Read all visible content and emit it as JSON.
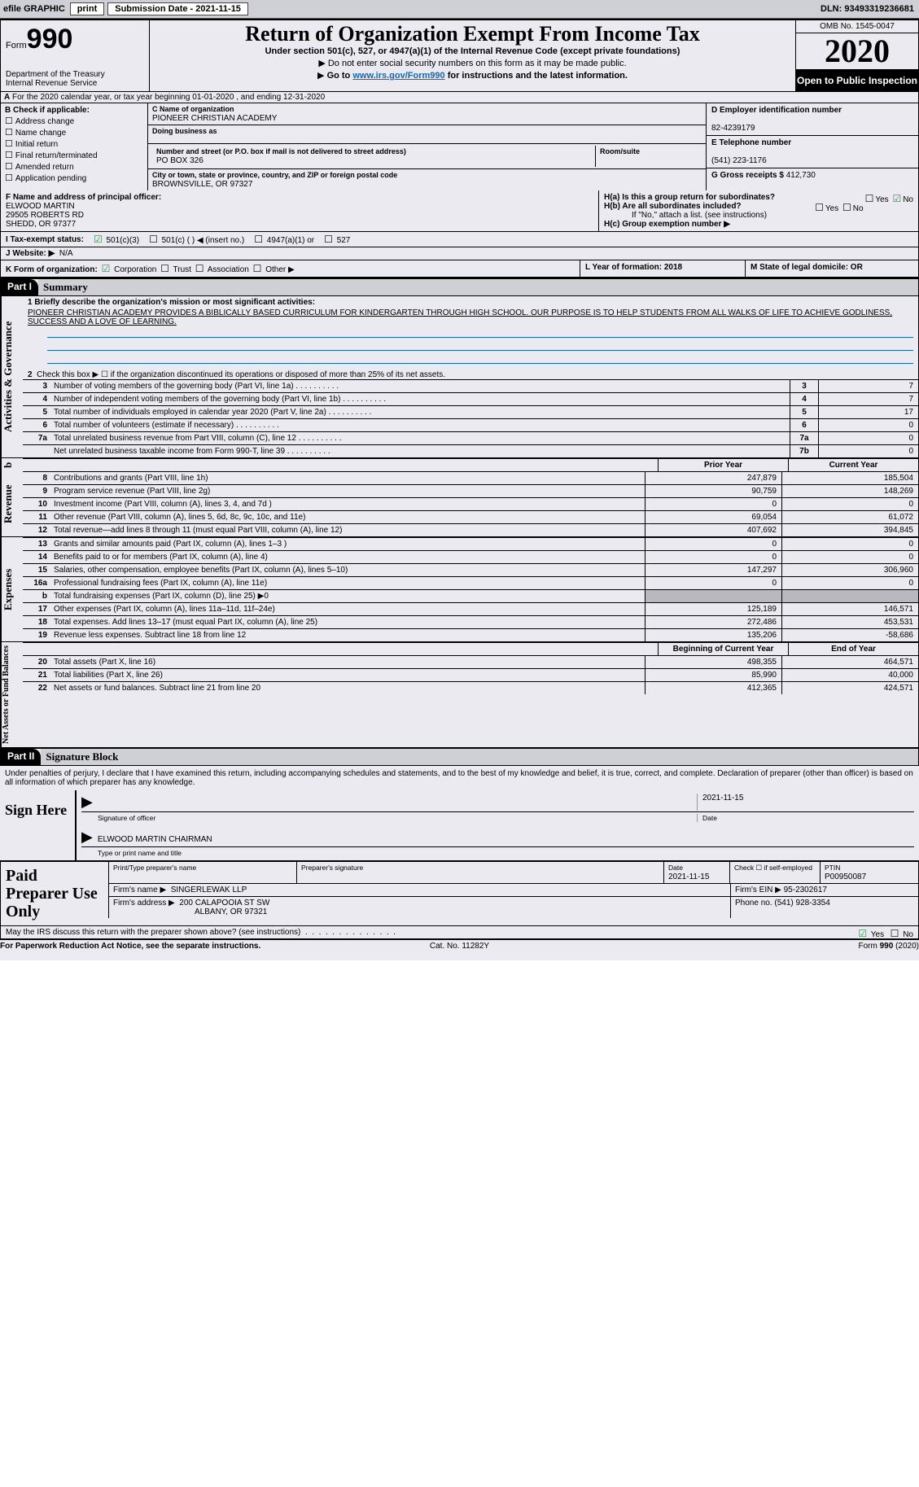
{
  "colors": {
    "bg": "#eaeaf0",
    "bar": "#cfcfd6",
    "link": "#1068c5",
    "check": "#1a9e3e",
    "shade": "#b8b8c0"
  },
  "topbar": {
    "efile_label": "efile GRAPHIC",
    "print_label": "print",
    "submission_label": "Submission Date - 2021-11-15",
    "dln_label": "DLN: 93493319236681"
  },
  "header": {
    "form_small": "Form",
    "form_num": "990",
    "dept": "Department of the Treasury\nInternal Revenue Service",
    "title": "Return of Organization Exempt From Income Tax",
    "subtitle": "Under section 501(c), 527, or 4947(a)(1) of the Internal Revenue Code (except private foundations)",
    "note1": "Do not enter social security numbers on this form as it may be made public.",
    "note2_pre": "Go to ",
    "note2_link": "www.irs.gov/Form990",
    "note2_post": " for instructions and the latest information.",
    "omb": "OMB No. 1545-0047",
    "year": "2020",
    "inspect": "Open to Public Inspection"
  },
  "row_a": {
    "text": "For the 2020 calendar year, or tax year beginning 01-01-2020   , and ending 12-31-2020",
    "prefix": "A"
  },
  "box_b": {
    "heading": "B Check if applicable:",
    "items": [
      "Address change",
      "Name change",
      "Initial return",
      "Final return/terminated",
      "Amended return",
      "Application pending"
    ]
  },
  "box_c": {
    "label": "C Name of organization",
    "name": "PIONEER CHRISTIAN ACADEMY",
    "dba_label": "Doing business as",
    "dba": "",
    "street_label": "Number and street (or P.O. box if mail is not delivered to street address)",
    "room_label": "Room/suite",
    "street": "PO BOX 326",
    "city_label": "City or town, state or province, country, and ZIP or foreign postal code",
    "city": "BROWNSVILLE, OR  97327"
  },
  "box_d": {
    "label": "D Employer identification number",
    "value": "82-4239179"
  },
  "box_e": {
    "label": "E Telephone number",
    "value": "(541) 223-1176"
  },
  "box_g": {
    "label": "G Gross receipts $",
    "value": "412,730"
  },
  "box_f": {
    "label": "F  Name and address of principal officer:",
    "name": "ELWOOD MARTIN",
    "addr1": "29505 ROBERTS RD",
    "addr2": "SHEDD, OR  97377"
  },
  "box_h": {
    "ha_label": "H(a)  Is this a group return for subordinates?",
    "ha_yes": "Yes",
    "ha_no": "No",
    "hb_label": "H(b)  Are all subordinates included?",
    "hb_note": "If \"No,\" attach a list. (see instructions)",
    "hc_label": "H(c)  Group exemption number ▶"
  },
  "row_i": {
    "label": "I   Tax-exempt status:",
    "opts": [
      "501(c)(3)",
      "501(c) (  ) ◀ (insert no.)",
      "4947(a)(1) or",
      "527"
    ]
  },
  "row_j": {
    "label": "J   Website: ▶",
    "value": "N/A"
  },
  "row_k": {
    "k_label": "K Form of organization:",
    "opts": [
      "Corporation",
      "Trust",
      "Association",
      "Other ▶"
    ],
    "l_label": "L Year of formation: 2018",
    "m_label": "M State of legal domicile: OR"
  },
  "parts": {
    "p1": "Part I",
    "p1_title": "Summary",
    "p2": "Part II",
    "p2_title": "Signature Block"
  },
  "summary": {
    "q1_label": "1  Briefly describe the organization's mission or most significant activities:",
    "q1_text": "PIONEER CHRISTIAN ACADEMY PROVIDES A BIBLICALLY BASED CURRICULUM FOR KINDERGARTEN THROUGH HIGH SCHOOL. OUR PURPOSE IS TO HELP STUDENTS FROM ALL WALKS OF LIFE TO ACHIEVE GODLINESS, SUCCESS AND A LOVE OF LEARNING.",
    "q2_label": "Check this box ▶ ☐  if the organization discontinued its operations or disposed of more than 25% of its net assets.",
    "lines_gov": [
      {
        "n": "3",
        "d": "Number of voting members of the governing body (Part VI, line 1a)",
        "cn": "3",
        "v": "7"
      },
      {
        "n": "4",
        "d": "Number of independent voting members of the governing body (Part VI, line 1b)",
        "cn": "4",
        "v": "7"
      },
      {
        "n": "5",
        "d": "Total number of individuals employed in calendar year 2020 (Part V, line 2a)",
        "cn": "5",
        "v": "17"
      },
      {
        "n": "6",
        "d": "Total number of volunteers (estimate if necessary)",
        "cn": "6",
        "v": "0"
      },
      {
        "n": "7a",
        "d": "Total unrelated business revenue from Part VIII, column (C), line 12",
        "cn": "7a",
        "v": "0"
      },
      {
        "n": "",
        "d": "Net unrelated business taxable income from Form 990-T, line 39",
        "cn": "7b",
        "v": "0"
      }
    ],
    "col_hdr_blank": "b",
    "col_hdr_prior": "Prior Year",
    "col_hdr_curr": "Current Year",
    "revenue": [
      {
        "n": "8",
        "d": "Contributions and grants (Part VIII, line 1h)",
        "p": "247,879",
        "c": "185,504"
      },
      {
        "n": "9",
        "d": "Program service revenue (Part VIII, line 2g)",
        "p": "90,759",
        "c": "148,269"
      },
      {
        "n": "10",
        "d": "Investment income (Part VIII, column (A), lines 3, 4, and 7d )",
        "p": "0",
        "c": "0"
      },
      {
        "n": "11",
        "d": "Other revenue (Part VIII, column (A), lines 5, 6d, 8c, 9c, 10c, and 11e)",
        "p": "69,054",
        "c": "61,072"
      },
      {
        "n": "12",
        "d": "Total revenue—add lines 8 through 11 (must equal Part VIII, column (A), line 12)",
        "p": "407,692",
        "c": "394,845"
      }
    ],
    "expenses": [
      {
        "n": "13",
        "d": "Grants and similar amounts paid (Part IX, column (A), lines 1–3 )",
        "p": "0",
        "c": "0"
      },
      {
        "n": "14",
        "d": "Benefits paid to or for members (Part IX, column (A), line 4)",
        "p": "0",
        "c": "0"
      },
      {
        "n": "15",
        "d": "Salaries, other compensation, employee benefits (Part IX, column (A), lines 5–10)",
        "p": "147,297",
        "c": "306,960"
      },
      {
        "n": "16a",
        "d": "Professional fundraising fees (Part IX, column (A), line 11e)",
        "p": "0",
        "c": "0"
      },
      {
        "n": "b",
        "d": "Total fundraising expenses (Part IX, column (D), line 25) ▶0",
        "p": "",
        "c": "",
        "shade": true
      },
      {
        "n": "17",
        "d": "Other expenses (Part IX, column (A), lines 11a–11d, 11f–24e)",
        "p": "125,189",
        "c": "146,571"
      },
      {
        "n": "18",
        "d": "Total expenses. Add lines 13–17 (must equal Part IX, column (A), line 25)",
        "p": "272,486",
        "c": "453,531"
      },
      {
        "n": "19",
        "d": "Revenue less expenses. Subtract line 18 from line 12",
        "p": "135,206",
        "c": "-58,686"
      }
    ],
    "na_hdr_beg": "Beginning of Current Year",
    "na_hdr_end": "End of Year",
    "netassets": [
      {
        "n": "20",
        "d": "Total assets (Part X, line 16)",
        "p": "498,355",
        "c": "464,571"
      },
      {
        "n": "21",
        "d": "Total liabilities (Part X, line 26)",
        "p": "85,990",
        "c": "40,000"
      },
      {
        "n": "22",
        "d": "Net assets or fund balances. Subtract line 21 from line 20",
        "p": "412,365",
        "c": "424,571"
      }
    ],
    "side_gov": "Activities & Governance",
    "side_rev": "Revenue",
    "side_exp": "Expenses",
    "side_na": "Net Assets or Fund Balances"
  },
  "penalty": "Under penalties of perjury, I declare that I have examined this return, including accompanying schedules and statements, and to the best of my knowledge and belief, it is true, correct, and complete. Declaration of preparer (other than officer) is based on all information of which preparer has any knowledge.",
  "sign": {
    "left": "Sign Here",
    "sig_label": "Signature of officer",
    "date": "2021-11-15",
    "date_label": "Date",
    "name": "ELWOOD MARTIN  CHAIRMAN",
    "name_label": "Type or print name and title"
  },
  "prep": {
    "left": "Paid Preparer Use Only",
    "r1": {
      "c1_label": "Print/Type preparer's name",
      "c1": "",
      "c2_label": "Preparer's signature",
      "c2": "",
      "c3_label": "Date",
      "c3": "2021-11-15",
      "c4_label": "Check ☐ if self-employed",
      "c5_label": "PTIN",
      "c5": "P00950087"
    },
    "r2": {
      "label": "Firm's name    ▶",
      "value": "SINGERLEWAK LLP",
      "ein_label": "Firm's EIN ▶",
      "ein": "95-2302617"
    },
    "r3": {
      "label": "Firm's address ▶",
      "value1": "200 CALAPOOIA ST SW",
      "value2": "ALBANY, OR  97321",
      "phone_label": "Phone no.",
      "phone": "(541) 928-3354"
    }
  },
  "discuss": {
    "text": "May the IRS discuss this return with the preparer shown above? (see instructions)",
    "yes": "Yes",
    "no": "No"
  },
  "footer": {
    "left": "For Paperwork Reduction Act Notice, see the separate instructions.",
    "mid": "Cat. No. 11282Y",
    "right": "Form 990 (2020)"
  }
}
